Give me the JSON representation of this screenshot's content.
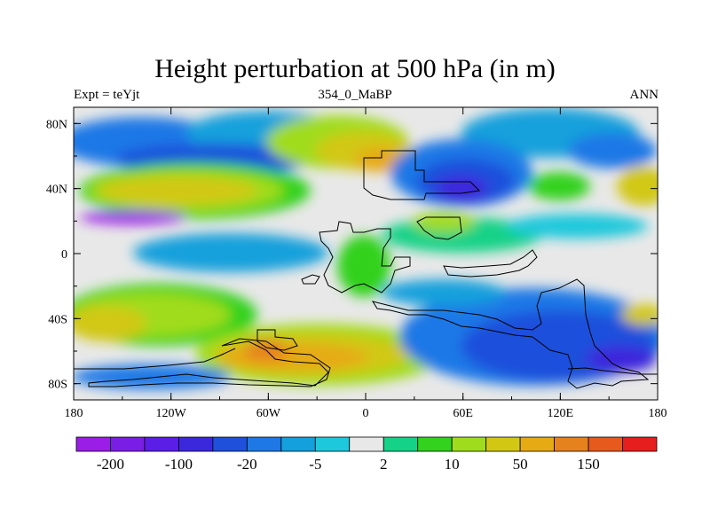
{
  "title": "Height perturbation at 500 hPa (in m)",
  "subtitle_left": "Expt = teYjt",
  "subtitle_center": "354_0_MaBP",
  "subtitle_right": "ANN",
  "map": {
    "projection": "cylindrical equidistant",
    "lon_range": [
      -180,
      180
    ],
    "lat_range": [
      -90,
      90
    ],
    "lon_ticks": [
      {
        "value": -180,
        "label": "180"
      },
      {
        "value": -120,
        "label": "120W"
      },
      {
        "value": -60,
        "label": "60W"
      },
      {
        "value": 0,
        "label": "0"
      },
      {
        "value": 60,
        "label": "60E"
      },
      {
        "value": 120,
        "label": "120E"
      },
      {
        "value": 180,
        "label": "180"
      }
    ],
    "lat_ticks": [
      {
        "value": 80,
        "label": "80N"
      },
      {
        "value": 40,
        "label": "40N"
      },
      {
        "value": 0,
        "label": "0"
      },
      {
        "value": -40,
        "label": "40S"
      },
      {
        "value": -80,
        "label": "80S"
      }
    ]
  },
  "colorbar": {
    "colors": [
      "#9b1ee6",
      "#7a1ee6",
      "#5a1ee6",
      "#3c28dc",
      "#1e50dc",
      "#1e78e6",
      "#14a0dc",
      "#1ec8dc",
      "#e8e8e8",
      "#14d287",
      "#32d21e",
      "#a0dc1e",
      "#d2c814",
      "#e6aa14",
      "#e6821e",
      "#e65a1e",
      "#e61e1e"
    ],
    "labels": [
      {
        "text": "-200",
        "boundary": 1
      },
      {
        "text": "-100",
        "boundary": 3
      },
      {
        "text": "-20",
        "boundary": 5
      },
      {
        "text": "-5",
        "boundary": 7
      },
      {
        "text": "2",
        "boundary": 9
      },
      {
        "text": "10",
        "boundary": 11
      },
      {
        "text": "50",
        "boundary": 13
      },
      {
        "text": "150",
        "boundary": 15
      }
    ]
  }
}
